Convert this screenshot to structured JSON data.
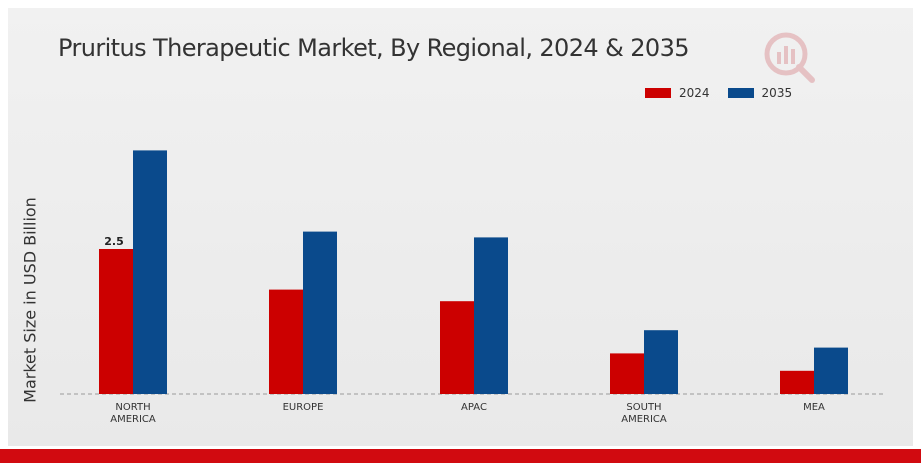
{
  "colors": {
    "2024": "#cc0000",
    "2035": "#0a4a8c",
    "bottom_bar": "#d10a10"
  },
  "logo_icon": "market-research-logo-icon",
  "chart_data": {
    "type": "bar",
    "title": "Pruritus Therapeutic Market, By Regional, 2024 & 2035",
    "xlabel": "",
    "ylabel": "Market Size in USD Billion",
    "categories": [
      "NORTH\nAMERICA",
      "EUROPE",
      "APAC",
      "SOUTH\nAMERICA",
      "MEA"
    ],
    "series": [
      {
        "name": "2024",
        "values": [
          2.5,
          1.8,
          1.6,
          0.7,
          0.4
        ]
      },
      {
        "name": "2035",
        "values": [
          4.2,
          2.8,
          2.7,
          1.1,
          0.8
        ]
      }
    ],
    "data_labels": [
      {
        "series": "2024",
        "category_index": 0,
        "text": "2.5"
      }
    ],
    "ylim": [
      0,
      6.5
    ],
    "grid": false,
    "legend": "top-right"
  }
}
